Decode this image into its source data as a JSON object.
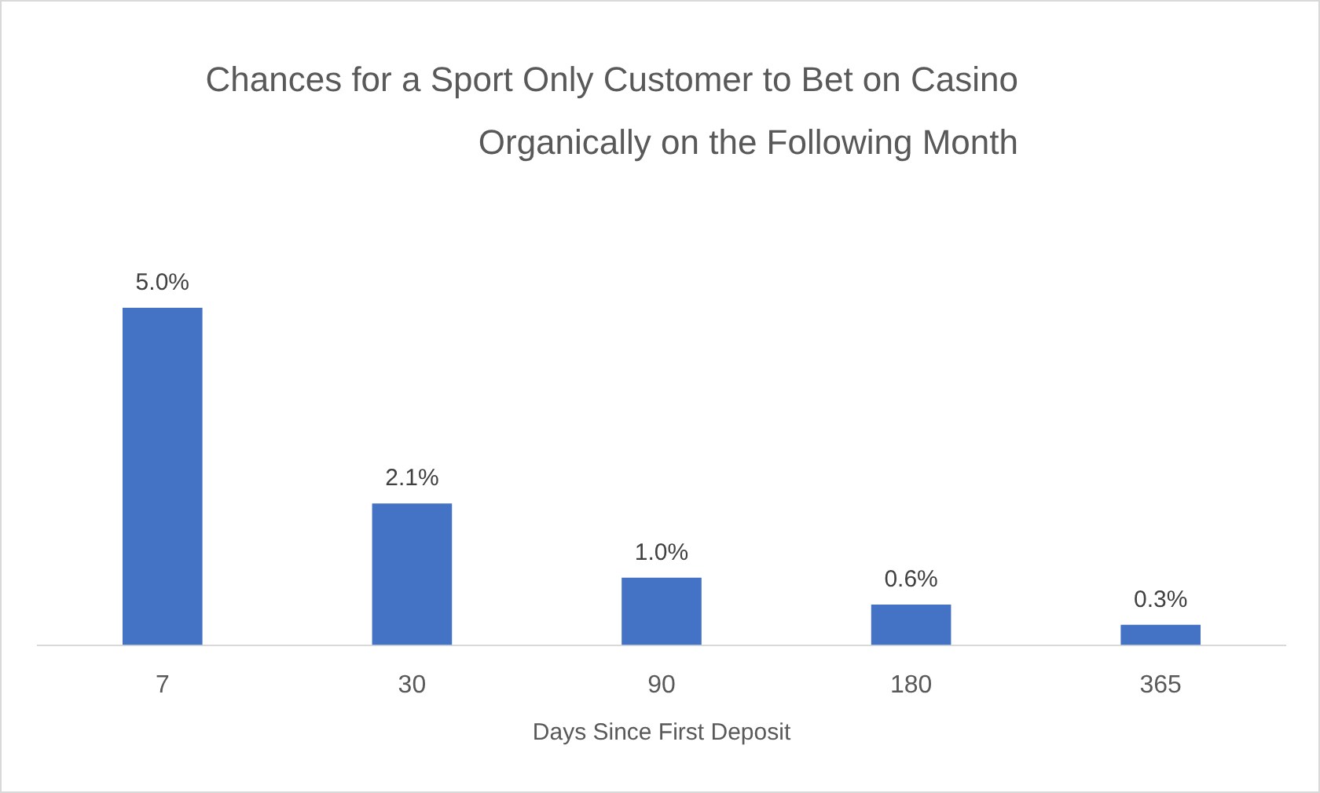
{
  "chart_data": {
    "type": "bar",
    "title": "Chances for a Sport Only Customer to Bet on Casino Organically on the Following Month",
    "xlabel": "Days Since First Deposit",
    "categories": [
      "7",
      "30",
      "90",
      "180",
      "365"
    ],
    "values": [
      5.0,
      2.1,
      1.0,
      0.6,
      0.3
    ],
    "value_labels": [
      "5.0%",
      "2.1%",
      "1.0%",
      "0.6%",
      "0.3%"
    ],
    "color": "#4472c4",
    "tick_labels": "x"
  }
}
